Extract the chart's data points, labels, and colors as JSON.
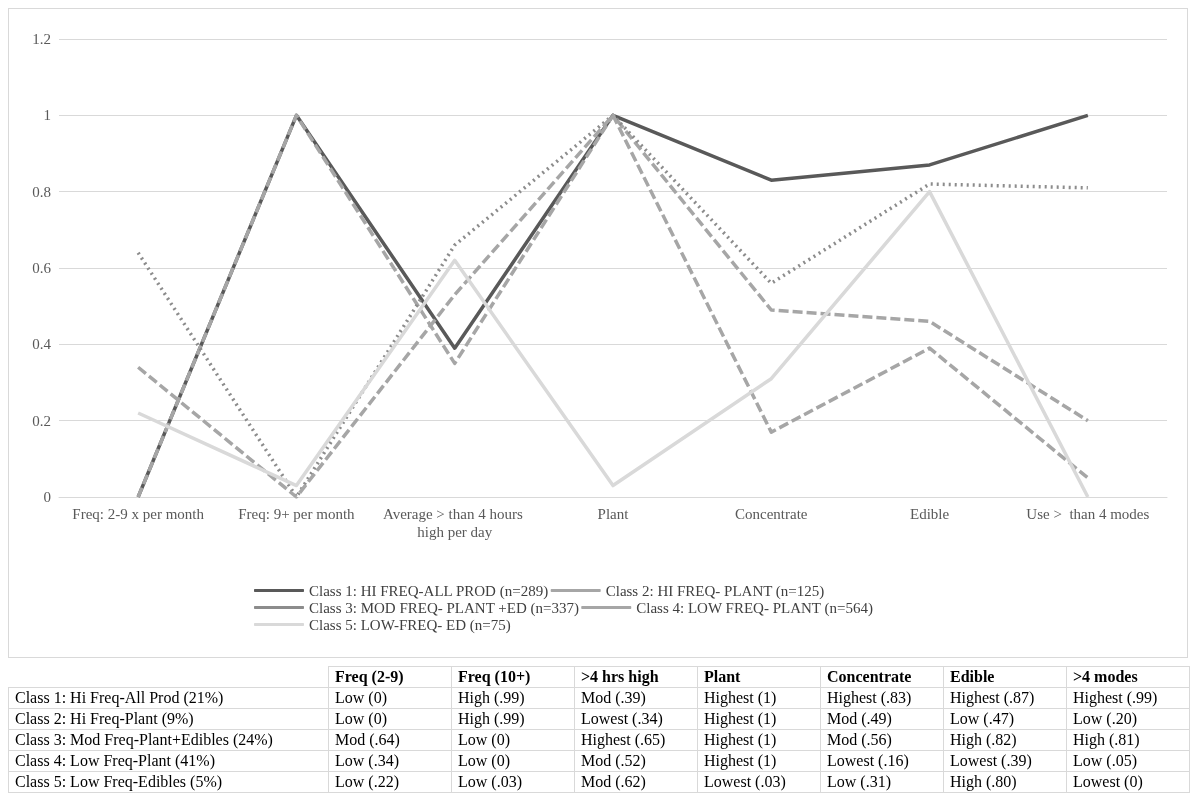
{
  "chart_data": [
    {
      "type": "line",
      "categories": [
        "Freq: 2-9 x per month",
        "Freq: 9+ per month",
        "Average > than 4 hours high per day",
        "Plant",
        "Concentrate",
        "Edible",
        "Use >  than 4 modes"
      ],
      "series": [
        {
          "name": "Class 1: HI FREQ-ALL PROD (n=289)",
          "color": "#595959",
          "line_style": "solid",
          "values": [
            0,
            1,
            0.39,
            1,
            0.83,
            0.87,
            1
          ]
        },
        {
          "name": "Class 2: HI FREQ- PLANT (n=125)",
          "color": "#a6a6a6",
          "line_style": "dashed",
          "values": [
            0,
            1,
            0.35,
            1,
            0.49,
            0.46,
            0.2
          ]
        },
        {
          "name": "Class 3: MOD FREQ- PLANT +ED (n=337)",
          "color": "#8c8c8c",
          "line_style": "dotted",
          "values": [
            0.64,
            0,
            0.66,
            1,
            0.56,
            0.82,
            0.81
          ]
        },
        {
          "name": "Class 4: LOW FREQ- PLANT (n=564)",
          "color": "#a6a6a6",
          "line_style": "dashed",
          "values": [
            0.34,
            0,
            0.53,
            1,
            0.17,
            0.39,
            0.05
          ]
        },
        {
          "name": "Class 5: LOW-FREQ- ED (n=75)",
          "color": "#d9d9d9",
          "line_style": "solid",
          "values": [
            0.22,
            0.03,
            0.62,
            0.03,
            0.31,
            0.8,
            0
          ]
        }
      ],
      "ylim": [
        0,
        1.2
      ],
      "yticks": [
        0,
        0.2,
        0.4,
        0.6,
        0.8,
        1,
        1.2
      ],
      "grid": "y",
      "legend": "bottom",
      "marker": "none"
    },
    {
      "type": "other",
      "categories": [
        null,
        "Freq (2-9)",
        "Freq (10+)",
        ">4 hrs high",
        "Plant",
        "Concentrate",
        "Edible",
        ">4 modes"
      ],
      "y_categories": [
        "Class 1: Hi Freq-All Prod (21%)",
        "Class 2: Hi Freq-Plant (9%)",
        "Class 3: Mod Freq-Plant+Edibles (24%)",
        "Class 4: Low Freq-Plant (41%)",
        "Class 5: Low Freq-Edibles (5%)"
      ],
      "cell_labels": [
        [
          "Low (0)",
          "High (.99)",
          "Mod (.39)",
          "Highest (1)",
          "Highest (.83)",
          "Highest (.87)",
          "Highest (.99)"
        ],
        [
          "Low (0)",
          "High (.99)",
          "Lowest (.34)",
          "Highest (1)",
          "Mod (.49)",
          "Low (.47)",
          "Low (.20)"
        ],
        [
          "Mod (.64)",
          "Low (0)",
          "Highest (.65)",
          "Highest (1)",
          "Mod (.56)",
          "High (.82)",
          "High (.81)"
        ],
        [
          "Low (.34)",
          "Low (0)",
          "Mod (.52)",
          "Highest (1)",
          "Lowest (.16)",
          "Lowest (.39)",
          "Low (.05)"
        ],
        [
          "Low (.22)",
          "Low (.03)",
          "Mod (.62)",
          "Lowest (.03)",
          "Low (.31)",
          "High (.80)",
          "Lowest (0)"
        ]
      ]
    }
  ]
}
